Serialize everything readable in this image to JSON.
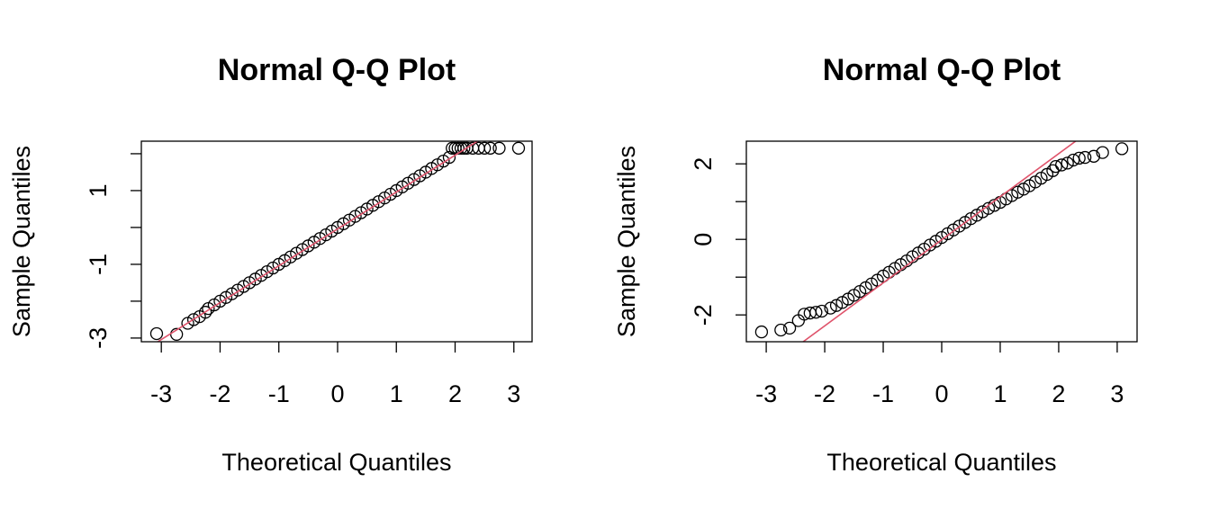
{
  "chart_data": [
    {
      "type": "qq",
      "title": "Normal Q-Q Plot",
      "xlabel": "Theoretical Quantiles",
      "ylabel": "Sample Quantiles",
      "xlim": [
        -3.34,
        3.31
      ],
      "ylim": [
        -3.1,
        2.34
      ],
      "xticks": [
        -3,
        -2,
        -1,
        0,
        1,
        2,
        3
      ],
      "yticks": [
        -3,
        -1,
        1
      ],
      "yminorticks": [
        -2,
        0,
        2
      ],
      "point_color": "#000000",
      "line_color": "#DF536B",
      "qqline": {
        "intercept": -0.04,
        "slope": 1.0
      },
      "x": [
        -3.08,
        -2.74,
        -2.55,
        -2.45,
        -2.35,
        -2.25,
        -2.2,
        -2.1,
        -2.0,
        -1.9,
        -1.8,
        -1.7,
        -1.6,
        -1.5,
        -1.4,
        -1.3,
        -1.2,
        -1.1,
        -1.0,
        -0.9,
        -0.8,
        -0.7,
        -0.6,
        -0.5,
        -0.4,
        -0.3,
        -0.2,
        -0.1,
        0.0,
        0.1,
        0.2,
        0.3,
        0.4,
        0.5,
        0.6,
        0.7,
        0.8,
        0.9,
        1.0,
        1.1,
        1.2,
        1.3,
        1.4,
        1.5,
        1.6,
        1.7,
        1.8,
        1.9,
        1.95,
        2.0,
        2.05,
        2.1,
        2.15,
        2.2,
        2.3,
        2.4,
        2.5,
        2.6,
        2.75,
        3.08
      ],
      "y": [
        -2.88,
        -2.9,
        -2.6,
        -2.5,
        -2.42,
        -2.3,
        -2.2,
        -2.1,
        -2.0,
        -1.9,
        -1.8,
        -1.7,
        -1.6,
        -1.5,
        -1.4,
        -1.3,
        -1.2,
        -1.1,
        -1.0,
        -0.9,
        -0.8,
        -0.7,
        -0.6,
        -0.5,
        -0.4,
        -0.3,
        -0.2,
        -0.1,
        0.0,
        0.1,
        0.2,
        0.3,
        0.4,
        0.5,
        0.6,
        0.7,
        0.8,
        0.9,
        1.0,
        1.1,
        1.2,
        1.3,
        1.4,
        1.5,
        1.6,
        1.7,
        1.8,
        1.9,
        2.15,
        2.15,
        2.15,
        2.15,
        2.15,
        2.15,
        2.15,
        2.15,
        2.15,
        2.15,
        2.15,
        2.15
      ]
    },
    {
      "type": "qq",
      "title": "Normal Q-Q Plot",
      "xlabel": "Theoretical Quantiles",
      "ylabel": "Sample Quantiles",
      "xlim": [
        -3.34,
        3.34
      ],
      "ylim": [
        -2.71,
        2.6
      ],
      "xticks": [
        -3,
        -2,
        -1,
        0,
        1,
        2,
        3
      ],
      "yticks": [
        -2,
        0,
        2
      ],
      "yminorticks": [
        -1,
        1
      ],
      "point_color": "#000000",
      "line_color": "#DF536B",
      "qqline": {
        "intercept": -0.01,
        "slope": 1.14
      },
      "x": [
        -3.08,
        -2.75,
        -2.6,
        -2.45,
        -2.35,
        -2.25,
        -2.15,
        -2.05,
        -1.9,
        -1.8,
        -1.7,
        -1.6,
        -1.5,
        -1.4,
        -1.3,
        -1.2,
        -1.1,
        -1.0,
        -0.9,
        -0.8,
        -0.7,
        -0.6,
        -0.5,
        -0.4,
        -0.3,
        -0.2,
        -0.1,
        0.0,
        0.1,
        0.2,
        0.3,
        0.4,
        0.5,
        0.6,
        0.7,
        0.8,
        0.9,
        1.0,
        1.1,
        1.2,
        1.3,
        1.4,
        1.5,
        1.6,
        1.7,
        1.8,
        1.9,
        1.95,
        2.05,
        2.15,
        2.25,
        2.35,
        2.45,
        2.6,
        2.75,
        3.08
      ],
      "y": [
        -2.45,
        -2.4,
        -2.35,
        -2.15,
        -1.98,
        -1.95,
        -1.93,
        -1.9,
        -1.82,
        -1.75,
        -1.67,
        -1.58,
        -1.48,
        -1.38,
        -1.28,
        -1.18,
        -1.08,
        -0.97,
        -0.87,
        -0.77,
        -0.67,
        -0.57,
        -0.46,
        -0.36,
        -0.26,
        -0.15,
        -0.05,
        0.05,
        0.15,
        0.25,
        0.35,
        0.45,
        0.55,
        0.64,
        0.73,
        0.82,
        0.9,
        0.98,
        1.07,
        1.16,
        1.25,
        1.33,
        1.42,
        1.52,
        1.62,
        1.72,
        1.82,
        1.93,
        1.97,
        2.02,
        2.1,
        2.15,
        2.17,
        2.2,
        2.3,
        2.4
      ]
    }
  ]
}
